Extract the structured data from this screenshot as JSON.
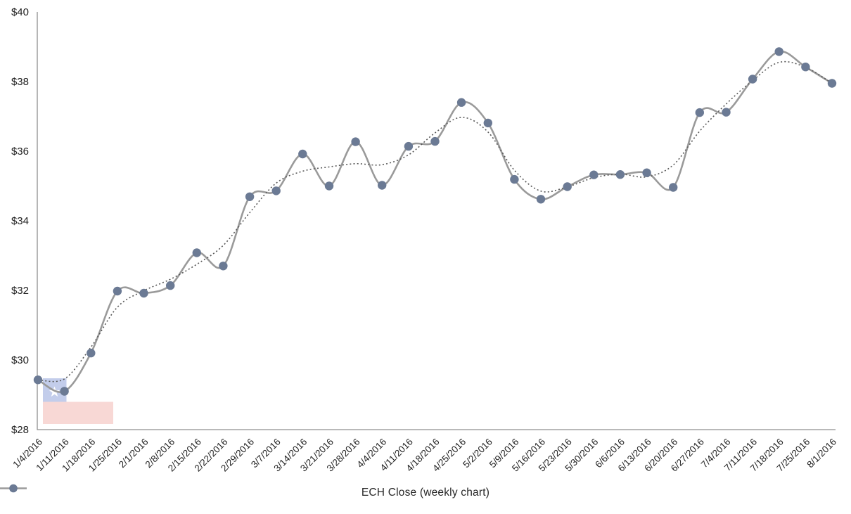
{
  "chart_data": {
    "type": "line",
    "title": "",
    "xlabel": "",
    "ylabel": "",
    "grid": false,
    "legend_position": "bottom-center",
    "ylim": [
      28,
      40
    ],
    "ytick_labels": [
      "$28",
      "$30",
      "$32",
      "$34",
      "$36",
      "$38",
      "$40"
    ],
    "x_categories": [
      "1/4/2016",
      "1/11/2016",
      "1/18/2016",
      "1/25/2016",
      "2/1/2016",
      "2/8/2016",
      "2/15/2016",
      "2/22/2016",
      "2/29/2016",
      "3/7/2016",
      "3/14/2016",
      "3/21/2016",
      "3/28/2016",
      "4/4/2016",
      "4/11/2016",
      "4/18/2016",
      "4/25/2016",
      "5/2/2016",
      "5/9/2016",
      "5/16/2016",
      "5/23/2016",
      "5/30/2016",
      "6/6/2016",
      "6/13/2016",
      "6/20/2016",
      "6/27/2016",
      "7/4/2016",
      "7/11/2016",
      "7/18/2016",
      "7/25/2016",
      "8/1/2016"
    ],
    "series": [
      {
        "name": "ECH Close (weekly chart)",
        "marker": "circle",
        "values": [
          29.43,
          29.1,
          30.2,
          31.98,
          31.92,
          32.14,
          33.08,
          32.7,
          34.69,
          34.86,
          35.92,
          35.0,
          36.27,
          35.02,
          36.14,
          36.28,
          37.4,
          36.81,
          35.19,
          34.62,
          34.98,
          35.32,
          35.33,
          35.38,
          34.96,
          37.11,
          37.12,
          38.07,
          38.86,
          38.42,
          37.95
        ]
      }
    ],
    "trendline": {
      "style": "dotted smoothed trendline",
      "color": "#595959"
    }
  },
  "legend": {
    "label": "ECH Close (weekly chart)"
  },
  "annotations": {
    "flag_watermark": {
      "name": "chile-flag",
      "canton_blue": "#c3cdeb",
      "star_white": "#ffffff",
      "stripe_white": "#ffffff",
      "stripe_red": "#f8d8d5"
    }
  },
  "colors": {
    "series_line": "#9a9a9a",
    "marker_fill": "#6b7a94",
    "trendline": "#595959",
    "axis_line": "#8f8f8f",
    "tick_text": "#1f1f1f",
    "background": "#ffffff"
  }
}
